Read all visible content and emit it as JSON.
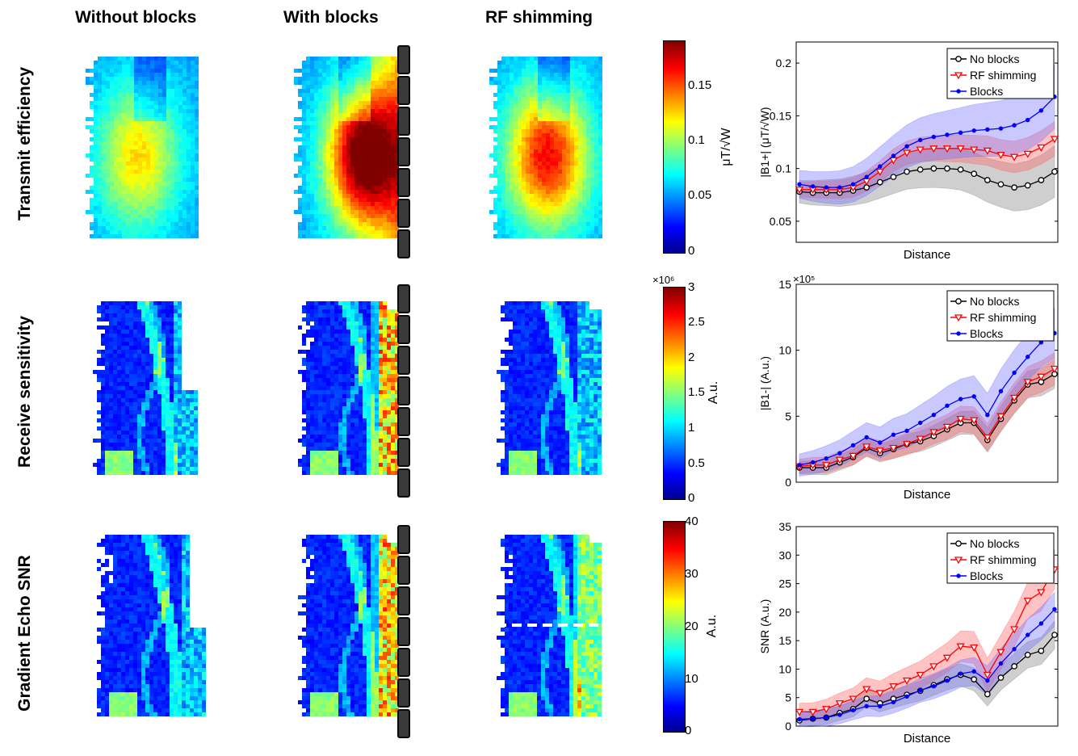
{
  "columns": [
    "Without blocks",
    "With blocks",
    "RF shimming"
  ],
  "rows": [
    "Transmit efficiency",
    "Receive sensitivity",
    "Gradient Echo SNR"
  ],
  "colorbars": [
    {
      "ticks": [
        "0.15",
        "0.1",
        "0.05",
        "0"
      ],
      "label": "μT/√W",
      "exponent": ""
    },
    {
      "ticks": [
        "3",
        "2.5",
        "2",
        "1.5",
        "1",
        "0.5",
        "0"
      ],
      "label": "A.u.",
      "exponent": "×10⁶"
    },
    {
      "ticks": [
        "40",
        "30",
        "20",
        "10",
        "0"
      ],
      "label": "A.u.",
      "exponent": ""
    }
  ],
  "legend_markers": {
    "no_blocks": "circle",
    "rf_shimming": "triangle-down",
    "blocks": "asterisk"
  },
  "colors": {
    "no_blocks": "#000000",
    "rf_shimming": "#ff0000",
    "blocks": "#0000ff",
    "band_black": "#808080",
    "band_red": "#ff6060",
    "band_blue": "#7070ff"
  },
  "chart_data": [
    {
      "type": "line",
      "title": "",
      "xlabel": "Distance",
      "ylabel": "|B1+| (μT/√W)",
      "ylim": [
        0.03,
        0.22
      ],
      "yticks": [
        0.05,
        0.1,
        0.15,
        0.2
      ],
      "ytick_labels": [
        "0.05",
        "0.1",
        "0.15",
        "0.2"
      ],
      "exponent": "",
      "x": [
        1,
        2,
        3,
        4,
        5,
        6,
        7,
        8,
        9,
        10,
        11,
        12,
        13,
        14,
        15,
        16,
        17,
        18,
        19,
        20
      ],
      "series": [
        {
          "name": "No blocks",
          "marker": "circle",
          "values": [
            0.078,
            0.077,
            0.077,
            0.077,
            0.079,
            0.082,
            0.087,
            0.092,
            0.097,
            0.099,
            0.1,
            0.1,
            0.099,
            0.095,
            0.089,
            0.085,
            0.082,
            0.084,
            0.089,
            0.097
          ],
          "band": 0.018
        },
        {
          "name": "RF shimming",
          "marker": "triangle-down",
          "values": [
            0.08,
            0.08,
            0.08,
            0.08,
            0.082,
            0.088,
            0.097,
            0.108,
            0.115,
            0.118,
            0.119,
            0.119,
            0.119,
            0.118,
            0.117,
            0.113,
            0.111,
            0.114,
            0.12,
            0.128
          ],
          "band": 0.012
        },
        {
          "name": "Blocks",
          "marker": "asterisk",
          "values": [
            0.085,
            0.083,
            0.082,
            0.082,
            0.085,
            0.092,
            0.102,
            0.112,
            0.121,
            0.127,
            0.13,
            0.132,
            0.134,
            0.136,
            0.137,
            0.138,
            0.141,
            0.146,
            0.155,
            0.168
          ],
          "band": 0.022
        }
      ]
    },
    {
      "type": "line",
      "title": "",
      "xlabel": "Distance",
      "ylabel": "|B1-| (A.u.)",
      "ylim": [
        0,
        15
      ],
      "yticks": [
        0,
        5,
        10,
        15
      ],
      "ytick_labels": [
        "0",
        "5",
        "10",
        "15"
      ],
      "exponent": "×10⁵",
      "x": [
        1,
        2,
        3,
        4,
        5,
        6,
        7,
        8,
        9,
        10,
        11,
        12,
        13,
        14,
        15,
        16,
        17,
        18,
        19,
        20
      ],
      "series": [
        {
          "name": "No blocks",
          "marker": "circle",
          "values": [
            1.1,
            1.1,
            1.1,
            1.5,
            1.9,
            2.6,
            2.2,
            2.5,
            2.9,
            3.1,
            3.5,
            4.0,
            4.5,
            4.5,
            3.2,
            4.8,
            6.2,
            7.4,
            7.6,
            8.2
          ],
          "band": 0.8
        },
        {
          "name": "RF shimming",
          "marker": "triangle-down",
          "values": [
            1.2,
            1.3,
            1.3,
            1.7,
            2.0,
            2.7,
            2.4,
            2.6,
            2.9,
            3.3,
            3.8,
            4.2,
            4.8,
            4.7,
            3.4,
            5.0,
            6.4,
            7.6,
            8.0,
            8.6
          ],
          "band": 0.9
        },
        {
          "name": "Blocks",
          "marker": "asterisk",
          "values": [
            1.3,
            1.5,
            1.8,
            2.2,
            2.8,
            3.4,
            3.0,
            3.6,
            3.9,
            4.5,
            5.1,
            5.8,
            6.3,
            6.5,
            5.1,
            6.9,
            8.3,
            9.5,
            10.6,
            11.3
          ],
          "band": 1.4
        }
      ]
    },
    {
      "type": "line",
      "title": "",
      "xlabel": "Distance",
      "ylabel": "SNR (A.u.)",
      "ylim": [
        0,
        35
      ],
      "yticks": [
        0,
        5,
        10,
        15,
        20,
        25,
        30,
        35
      ],
      "ytick_labels": [
        "0",
        "5",
        "10",
        "15",
        "20",
        "25",
        "30",
        "35"
      ],
      "exponent": "",
      "x": [
        1,
        2,
        3,
        4,
        5,
        6,
        7,
        8,
        9,
        10,
        11,
        12,
        13,
        14,
        15,
        16,
        17,
        18,
        19,
        20
      ],
      "series": [
        {
          "name": "No blocks",
          "marker": "circle",
          "values": [
            1.0,
            1.3,
            1.5,
            2.3,
            3.0,
            4.8,
            4.0,
            4.8,
            5.5,
            6.2,
            7.2,
            8.2,
            9.0,
            8.2,
            5.6,
            8.5,
            10.5,
            12.5,
            13.2,
            16.0
          ],
          "band": 1.8
        },
        {
          "name": "RF shimming",
          "marker": "triangle-down",
          "values": [
            2.5,
            2.5,
            3.0,
            4.0,
            4.8,
            6.5,
            5.8,
            7.0,
            8.0,
            9.0,
            10.5,
            12.0,
            14.0,
            13.8,
            9.0,
            13.0,
            17.0,
            22.0,
            23.5,
            27.5
          ],
          "band": 2.5
        },
        {
          "name": "Blocks",
          "marker": "asterisk",
          "values": [
            1.2,
            1.3,
            1.5,
            2.0,
            2.8,
            3.5,
            3.5,
            4.2,
            5.2,
            6.3,
            7.0,
            8.0,
            9.2,
            9.6,
            8.0,
            11.0,
            13.5,
            16.0,
            18.0,
            20.5
          ],
          "band": 2.2
        }
      ]
    }
  ]
}
